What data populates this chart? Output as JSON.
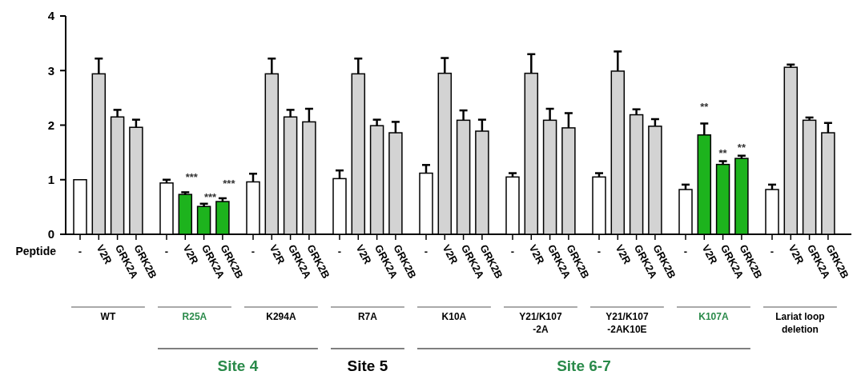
{
  "chart_data": {
    "type": "bar",
    "xlabel": "Peptide",
    "categories": [
      "-",
      "V2R",
      "GRK2A",
      "GRK2B",
      "-",
      "V2R",
      "GRK2A",
      "GRK2B",
      "-",
      "V2R",
      "GRK2A",
      "GRK2B",
      "-",
      "V2R",
      "GRK2A",
      "GRK2B",
      "-",
      "V2R",
      "GRK2A",
      "GRK2B",
      "-",
      "V2R",
      "GRK2A",
      "GRK2B",
      "-",
      "V2R",
      "GRK2A",
      "GRK2B",
      "-",
      "V2R",
      "GRK2A",
      "GRK2B",
      "-",
      "V2R",
      "GRK2A",
      "GRK2B"
    ],
    "values": [
      1.0,
      2.94,
      2.15,
      1.96,
      0.94,
      0.73,
      0.51,
      0.6,
      0.96,
      2.94,
      2.15,
      2.06,
      1.02,
      2.94,
      1.99,
      1.86,
      1.12,
      2.95,
      2.09,
      1.89,
      1.05,
      2.95,
      2.09,
      1.95,
      1.05,
      2.99,
      2.19,
      1.98,
      0.82,
      1.82,
      1.28,
      1.39,
      0.82,
      3.06,
      2.09,
      1.86
    ],
    "errors": [
      null,
      [
        2.94,
        3.22
      ],
      [
        2.15,
        2.28
      ],
      [
        1.96,
        2.1
      ],
      [
        0.94,
        1.0
      ],
      [
        0.73,
        0.77
      ],
      [
        0.51,
        0.56
      ],
      [
        0.6,
        0.66
      ],
      [
        0.96,
        1.11
      ],
      [
        2.94,
        3.22
      ],
      [
        2.15,
        2.28
      ],
      [
        2.06,
        2.3
      ],
      [
        1.02,
        1.17
      ],
      [
        2.94,
        3.22
      ],
      [
        1.99,
        2.1
      ],
      [
        1.86,
        2.06
      ],
      [
        1.12,
        1.27
      ],
      [
        2.95,
        3.23
      ],
      [
        2.09,
        2.27
      ],
      [
        1.89,
        2.1
      ],
      [
        1.05,
        1.12
      ],
      [
        2.95,
        3.3
      ],
      [
        2.09,
        2.3
      ],
      [
        1.95,
        2.22
      ],
      [
        1.05,
        1.12
      ],
      [
        2.99,
        3.35
      ],
      [
        2.19,
        2.29
      ],
      [
        1.98,
        2.11
      ],
      [
        0.82,
        0.91
      ],
      [
        1.82,
        2.03
      ],
      [
        1.28,
        1.34
      ],
      [
        1.39,
        1.44
      ],
      [
        0.82,
        0.91
      ],
      [
        3.06,
        3.11
      ],
      [
        2.09,
        2.14
      ],
      [
        1.86,
        2.04
      ]
    ],
    "colors": [
      "#ffffff",
      "#d3d3d3",
      "#d3d3d3",
      "#d3d3d3",
      "#ffffff",
      "#1db31d",
      "#1db31d",
      "#1db31d",
      "#ffffff",
      "#d3d3d3",
      "#d3d3d3",
      "#d3d3d3",
      "#ffffff",
      "#d3d3d3",
      "#d3d3d3",
      "#d3d3d3",
      "#ffffff",
      "#d3d3d3",
      "#d3d3d3",
      "#d3d3d3",
      "#ffffff",
      "#d3d3d3",
      "#d3d3d3",
      "#d3d3d3",
      "#ffffff",
      "#d3d3d3",
      "#d3d3d3",
      "#d3d3d3",
      "#ffffff",
      "#1db31d",
      "#1db31d",
      "#1db31d",
      "#ffffff",
      "#d3d3d3",
      "#d3d3d3",
      "#d3d3d3"
    ],
    "ylim": [
      0,
      4
    ],
    "yticks": [
      0,
      1,
      2,
      3,
      4
    ],
    "grid": false,
    "annotations": [
      "WT",
      "R25A",
      "K294A",
      "R7A",
      "K10A",
      "Y21/K107\n-2A",
      "Y21/K107\n-2AK10E",
      "K107A",
      "Lariat loop\ndeletion",
      "Site 4",
      "Site 5",
      "Site 6-7",
      "***",
      "***",
      "***",
      "**",
      "**",
      "**"
    ]
  }
}
